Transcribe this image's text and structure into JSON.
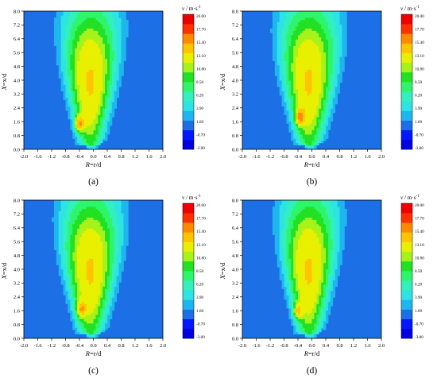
{
  "colors": {
    "background": "#1d6fe6",
    "colormap": [
      "#0000e0",
      "#0018ff",
      "#1d6fe6",
      "#1fb6ef",
      "#2ee3e3",
      "#33f0bc",
      "#2ef56a",
      "#22e024",
      "#a6f21a",
      "#e8f000",
      "#ffc400",
      "#ff8a00",
      "#ff3000",
      "#ee0000"
    ]
  },
  "chart_data": [
    {
      "type": "heatmap",
      "panel": "(a)",
      "xlabel_var": "R",
      "xlabel_eq": "=r/d",
      "ylabel_var": "X",
      "ylabel_eq": "=x/d",
      "xlim": [
        -2.0,
        2.0
      ],
      "ylim": [
        0.0,
        8.0
      ],
      "x_ticks": [
        "-2.0",
        "-1.6",
        "-1.2",
        "-0.8",
        "-0.4",
        "0.0",
        "0.4",
        "0.8",
        "1.2",
        "1.6",
        "2.0"
      ],
      "y_ticks": [
        "0.0",
        "0.8",
        "1.6",
        "2.4",
        "3.2",
        "4.0",
        "4.8",
        "5.6",
        "6.4",
        "7.2",
        "8.0"
      ],
      "colorbar_title_var": "v",
      "colorbar_title_unit": " / m·s",
      "colorbar_title_exp": "-1",
      "colorbar_ticks": [
        "20.00",
        "17.70",
        "15.40",
        "13.10",
        "10.80",
        "8.50",
        "6.20",
        "3.90",
        "1.60",
        "-0.70",
        "-3.00"
      ],
      "peak": {
        "r": -0.4,
        "x": 1.5,
        "v": 16.5
      },
      "jet_spread": 1.0
    },
    {
      "type": "heatmap",
      "panel": "(b)",
      "xlabel_var": "R",
      "xlabel_eq": "=r/d",
      "ylabel_var": "X",
      "ylabel_eq": "=x/d",
      "xlim": [
        -2.0,
        2.0
      ],
      "ylim": [
        0.0,
        8.0
      ],
      "x_ticks": [
        "-2.0",
        "-1.6",
        "-1.2",
        "-0.8",
        "-0.4",
        "0.0",
        "0.4",
        "0.8",
        "1.2",
        "1.6",
        "2.0"
      ],
      "y_ticks": [
        "0.0",
        "0.8",
        "1.6",
        "2.4",
        "3.2",
        "4.0",
        "4.8",
        "5.6",
        "6.4",
        "7.2",
        "8.0"
      ],
      "colorbar_title_var": "v",
      "colorbar_title_unit": " / m·s",
      "colorbar_title_exp": "-1",
      "colorbar_ticks": [
        "20.00",
        "17.70",
        "15.40",
        "13.10",
        "10.80",
        "8.50",
        "6.20",
        "3.90",
        "1.60",
        "-0.70",
        "-3.00"
      ],
      "peak": {
        "r": -0.35,
        "x": 1.9,
        "v": 16.5
      },
      "jet_spread": 1.05
    },
    {
      "type": "heatmap",
      "panel": "(c)",
      "xlabel_var": "R",
      "xlabel_eq": "=r/d",
      "ylabel_var": "X",
      "ylabel_eq": "=x/d",
      "xlim": [
        -2.0,
        2.0
      ],
      "ylim": [
        0.0,
        8.0
      ],
      "x_ticks": [
        "-2.0",
        "-1.6",
        "-1.2",
        "-0.8",
        "-0.4",
        "0.0",
        "0.4",
        "0.8",
        "1.2",
        "1.6",
        "2.0"
      ],
      "y_ticks": [
        "0.0",
        "0.8",
        "1.6",
        "2.4",
        "3.2",
        "4.0",
        "4.8",
        "5.6",
        "6.4",
        "7.2",
        "8.0"
      ],
      "colorbar_title_var": "v",
      "colorbar_title_unit": " / m·s",
      "colorbar_title_exp": "-1",
      "colorbar_ticks": [
        "20.00",
        "17.70",
        "15.40",
        "13.10",
        "10.80",
        "8.50",
        "6.20",
        "3.90",
        "1.60",
        "-0.70",
        "-3.00"
      ],
      "peak": {
        "r": -0.35,
        "x": 1.7,
        "v": 15.0
      },
      "jet_spread": 1.05
    },
    {
      "type": "heatmap",
      "panel": "(d)",
      "xlabel_var": "R",
      "xlabel_eq": "=r/d",
      "ylabel_var": "X",
      "ylabel_eq": "=x/d",
      "xlim": [
        -2.0,
        2.0
      ],
      "ylim": [
        0.0,
        8.0
      ],
      "x_ticks": [
        "-2.0",
        "-1.6",
        "-1.2",
        "-0.8",
        "-0.4",
        "0.0",
        "0.4",
        "0.8",
        "1.2",
        "1.6",
        "2.0"
      ],
      "y_ticks": [
        "0.0",
        "0.8",
        "1.6",
        "2.4",
        "3.2",
        "4.0",
        "4.8",
        "5.6",
        "6.4",
        "7.2",
        "8.0"
      ],
      "colorbar_title_var": "v",
      "colorbar_title_unit": " / m·s",
      "colorbar_title_exp": "-1",
      "colorbar_ticks": [
        "20.00",
        "17.70",
        "15.40",
        "13.10",
        "10.80",
        "8.50",
        "6.20",
        "3.90",
        "1.60",
        "-0.70",
        "-3.00"
      ],
      "peak": {
        "r": -0.4,
        "x": 1.6,
        "v": 14.5
      },
      "jet_spread": 1.0
    }
  ]
}
